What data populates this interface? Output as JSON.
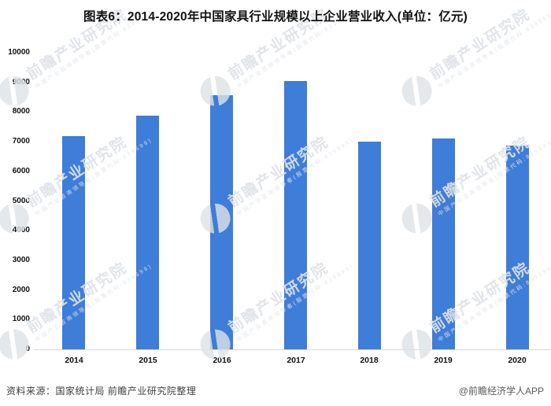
{
  "page": {
    "title": "图表6：2014-2020年中国家具行业规模以上企业营业收入(单位：亿元)"
  },
  "chart_data": {
    "type": "bar",
    "title": "图表6：2014-2020年中国家具行业规模以上企业营业收入(单位：亿元)",
    "categories": [
      "2014",
      "2015",
      "2016",
      "2017",
      "2018",
      "2019",
      "2020"
    ],
    "values": [
      7187,
      7873,
      8560,
      9056,
      7012,
      7117,
      6875
    ],
    "unit": "亿元",
    "xlabel": "",
    "ylabel": "",
    "ylim": [
      0,
      10000
    ],
    "ytick_step": 1000,
    "grid": false,
    "legend": null,
    "bar_color": "#3E7DD8"
  },
  "footer": {
    "source": "资料来源：国家统计局 前瞻产业研究院整理",
    "credit": "@前瞻经济学人APP"
  },
  "watermark": {
    "brand": "前瞻产业研究院",
    "tagline": "中国产业咨询领导者(股票代码:839599)"
  }
}
